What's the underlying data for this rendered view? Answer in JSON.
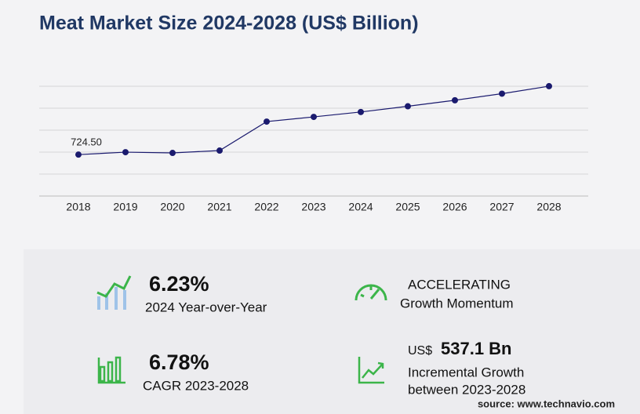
{
  "chart_data": {
    "type": "line",
    "title": "Meat Market Size 2024-2028 (US$ Billion)",
    "categories": [
      "2018",
      "2019",
      "2020",
      "2021",
      "2022",
      "2023",
      "2024",
      "2025",
      "2026",
      "2027",
      "2028"
    ],
    "series": [
      {
        "color": "#1a1a6e",
        "values": [
          724.5,
          767,
          754,
          795,
          1302,
          1384,
          1470,
          1570,
          1675,
          1790,
          1921
        ],
        "value_labels": [
          "724.50",
          null,
          null,
          null,
          null,
          null,
          null,
          null,
          null,
          null,
          null
        ]
      }
    ],
    "ylim": [
      0,
      1920
    ],
    "grid": true
  },
  "kpis": [
    {
      "value": "6.23%",
      "label": "2024 Year-over-Year"
    },
    {
      "value": "ACCELERATING",
      "label": "Growth Momentum"
    },
    {
      "value": "6.78%",
      "label": "CAGR 2023-2028"
    },
    {
      "prefix": "US$",
      "value": "537.1 Bn",
      "label": "Incremental Growth",
      "label2": "between 2023-2028"
    }
  ],
  "source": "source: www.technavio.com"
}
